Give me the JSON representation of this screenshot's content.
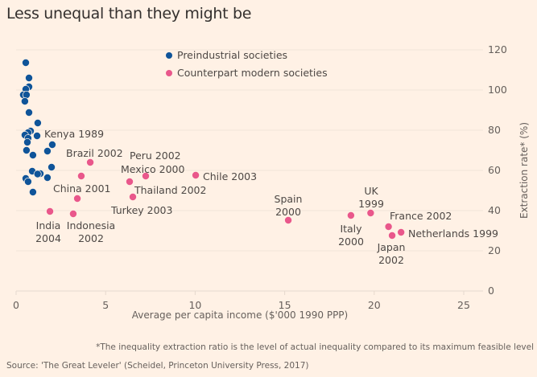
{
  "title": "Less unequal than they might be",
  "footnote": "*The inequality extraction ratio is the level of actual inequality compared to its maximum feasible level",
  "source": "Source: 'The Great Leveler' (Scheidel, Princeton University Press, 2017)",
  "chart_data": {
    "type": "scatter",
    "title": "Less unequal than they might be",
    "xlabel": "Average per capita income ($'000 1990 PPP)",
    "ylabel": "Extraction rate* (%)",
    "xlim": [
      0,
      26
    ],
    "ylim": [
      0,
      120
    ],
    "xticks": [
      0,
      5,
      10,
      15,
      20,
      25
    ],
    "yticks": [
      0,
      20,
      40,
      60,
      80,
      100,
      120
    ],
    "y_axis_side": "right",
    "grid": "horizontal",
    "legend_placement": "top-center",
    "colors": {
      "background": "#fff1e5",
      "preindustrial": "#0f5499",
      "modern": "#e9578b",
      "text": "#66605c",
      "grid": "#e6d9ce"
    },
    "series": [
      {
        "name": "Preindustrial societies",
        "color": "#0f5499",
        "points": [
          {
            "x": 0.54,
            "y": 113.6
          },
          {
            "x": 0.72,
            "y": 106
          },
          {
            "x": 0.72,
            "y": 101.6
          },
          {
            "x": 0.54,
            "y": 100.4
          },
          {
            "x": 0.4,
            "y": 97.6
          },
          {
            "x": 0.58,
            "y": 97.6
          },
          {
            "x": 0.49,
            "y": 94.4
          },
          {
            "x": 0.72,
            "y": 88.8
          },
          {
            "x": 1.21,
            "y": 83.6
          },
          {
            "x": 0.81,
            "y": 79.6
          },
          {
            "x": 0.67,
            "y": 78.8
          },
          {
            "x": 0.49,
            "y": 77.6
          },
          {
            "x": 1.17,
            "y": 77.2,
            "label": "Kenya 1989"
          },
          {
            "x": 0.67,
            "y": 76
          },
          {
            "x": 0.63,
            "y": 74
          },
          {
            "x": 2.02,
            "y": 72.8
          },
          {
            "x": 0.58,
            "y": 70
          },
          {
            "x": 1.75,
            "y": 69.6
          },
          {
            "x": 0.94,
            "y": 67.6
          },
          {
            "x": 1.98,
            "y": 61.6
          },
          {
            "x": 0.9,
            "y": 59.6
          },
          {
            "x": 1.35,
            "y": 58.4
          },
          {
            "x": 1.2,
            "y": 58.2
          },
          {
            "x": 1.75,
            "y": 56.4
          },
          {
            "x": 0.54,
            "y": 56
          },
          {
            "x": 0.67,
            "y": 54.4
          },
          {
            "x": 0.94,
            "y": 49.2
          }
        ]
      },
      {
        "name": "Counterpart modern societies",
        "color": "#e9578b",
        "points": [
          {
            "x": 4.14,
            "y": 64,
            "label": "Brazil 2002"
          },
          {
            "x": 3.64,
            "y": 57.2,
            "label": "China 2001"
          },
          {
            "x": 3.42,
            "y": 46,
            "label": "Turkey 2003"
          },
          {
            "x": 1.89,
            "y": 39.6,
            "label": "India 2004"
          },
          {
            "x": 3.19,
            "y": 38.4,
            "label": "Indonesia 2002"
          },
          {
            "x": 7.24,
            "y": 57.2,
            "label": "Peru 2002"
          },
          {
            "x": 6.34,
            "y": 54.4,
            "label": "Mexico 2000"
          },
          {
            "x": 6.52,
            "y": 46.8,
            "label": "Thailand 2002"
          },
          {
            "x": 10.03,
            "y": 57.6,
            "label": "Chile 2003"
          },
          {
            "x": 15.2,
            "y": 35.2,
            "label": "Spain 2000"
          },
          {
            "x": 18.7,
            "y": 37.6,
            "label": "Italy 2000"
          },
          {
            "x": 19.8,
            "y": 38.8,
            "label": "UK 1999"
          },
          {
            "x": 20.8,
            "y": 32,
            "label": "France 2002"
          },
          {
            "x": 21.0,
            "y": 27.6,
            "label": "Japan 2002"
          },
          {
            "x": 21.5,
            "y": 29.2,
            "label": "Netherlands 1999"
          }
        ]
      }
    ],
    "annotations": [
      {
        "lines": [
          "Kenya 1989"
        ]
      },
      {
        "lines": [
          "Brazil 2002"
        ]
      },
      {
        "lines": [
          "Peru 2002"
        ]
      },
      {
        "lines": [
          "Mexico 2000"
        ]
      },
      {
        "lines": [
          "China 2001"
        ]
      },
      {
        "lines": [
          "Thailand 2002"
        ]
      },
      {
        "lines": [
          "Turkey 2003"
        ]
      },
      {
        "lines": [
          "Chile 2003"
        ]
      },
      {
        "lines": [
          "India",
          "2004"
        ]
      },
      {
        "lines": [
          "Indonesia",
          "2002"
        ]
      },
      {
        "lines": [
          "Spain",
          "2000"
        ]
      },
      {
        "lines": [
          "UK",
          "1999"
        ]
      },
      {
        "lines": [
          "Italy",
          "2000"
        ]
      },
      {
        "lines": [
          "France 2002"
        ]
      },
      {
        "lines": [
          "Netherlands 1999"
        ]
      },
      {
        "lines": [
          "Japan",
          "2002"
        ]
      }
    ]
  }
}
